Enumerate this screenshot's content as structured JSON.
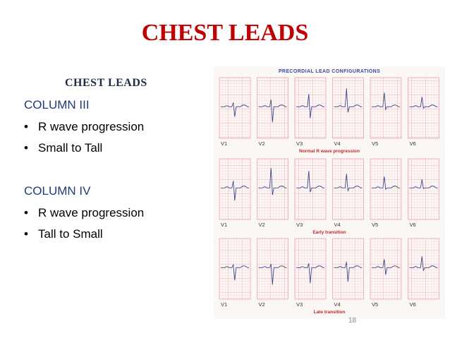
{
  "slide": {
    "title": "CHEST LEADS",
    "subtitle": "CHEST  LEADS",
    "column3": {
      "heading": "COLUMN  III",
      "bullets": [
        "R wave progression",
        "Small to Tall"
      ]
    },
    "column4": {
      "heading": "COLUMN  IV",
      "bullets": [
        "R wave progression",
        "Tall to Small"
      ]
    },
    "page_number": "18"
  },
  "figure": {
    "title": "PRECORDIAL LEAD CONFIGURATIONS",
    "leads": [
      "V1",
      "V2",
      "V3",
      "V4",
      "V5",
      "V6"
    ],
    "rows": [
      {
        "caption": "Normal R wave progression"
      },
      {
        "caption": "Early transition"
      },
      {
        "caption": "Late transition"
      }
    ],
    "colors": {
      "grid": "#f0a7b2",
      "trace": "#3a4a8c",
      "caption": "#c0282a",
      "title": "#3a4aa0"
    }
  },
  "bullet_symbol": "•"
}
